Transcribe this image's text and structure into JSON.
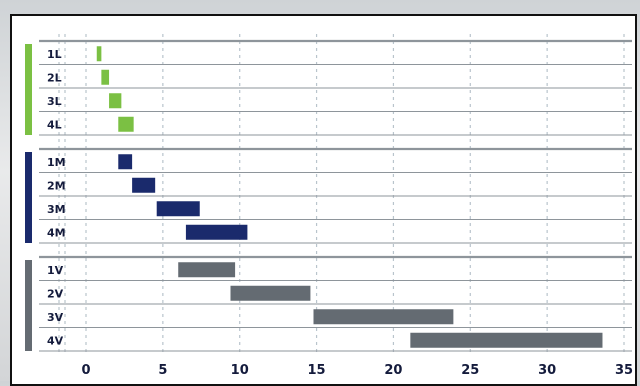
{
  "chart_data": {
    "type": "bar",
    "orientation": "horizontal-range",
    "title": "",
    "xlabel": "",
    "ylabel": "",
    "xlim": [
      0,
      35
    ],
    "x_ticks": [
      0,
      5,
      10,
      15,
      20,
      25,
      30,
      35
    ],
    "x_tick_labels": [
      "0",
      "5",
      "10",
      "15",
      "20",
      "25",
      "30",
      "35"
    ],
    "grid": "vertical dashed",
    "groups": [
      {
        "id": "L",
        "color": "#7bc043",
        "rows": [
          {
            "label": "1L",
            "start": 0.7,
            "end": 1.0
          },
          {
            "label": "2L",
            "start": 1.0,
            "end": 1.5
          },
          {
            "label": "3L",
            "start": 1.5,
            "end": 2.3
          },
          {
            "label": "4L",
            "start": 2.1,
            "end": 3.1
          }
        ]
      },
      {
        "id": "M",
        "color": "#1a2a6c",
        "rows": [
          {
            "label": "1M",
            "start": 2.1,
            "end": 3.0
          },
          {
            "label": "2M",
            "start": 3.0,
            "end": 4.5
          },
          {
            "label": "3M",
            "start": 4.6,
            "end": 7.4
          },
          {
            "label": "4M",
            "start": 6.5,
            "end": 10.5
          }
        ]
      },
      {
        "id": "V",
        "color": "#646b72",
        "rows": [
          {
            "label": "1V",
            "start": 6.0,
            "end": 9.7
          },
          {
            "label": "2V",
            "start": 9.4,
            "end": 14.6
          },
          {
            "label": "3V",
            "start": 14.8,
            "end": 23.9
          },
          {
            "label": "4V",
            "start": 21.1,
            "end": 33.6
          }
        ]
      }
    ]
  }
}
